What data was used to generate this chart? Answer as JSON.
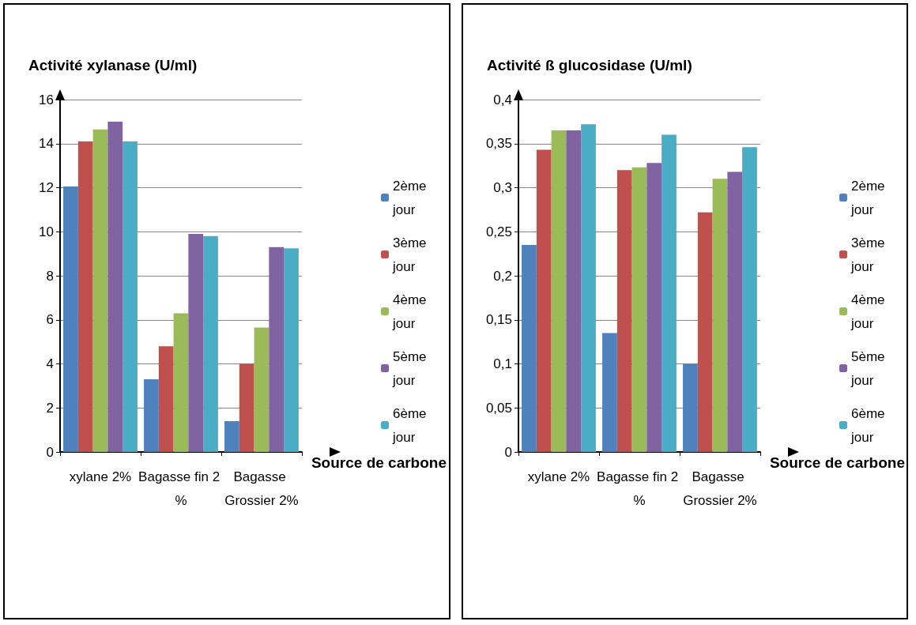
{
  "chart_data": [
    {
      "type": "bar",
      "ylabel": "Activité xylanase (U/ml)",
      "xlabel": "Source de carbone",
      "categories": [
        "xylane 2%",
        "Bagasse fin 2 %",
        "Bagasse Grossier 2%"
      ],
      "series": [
        {
          "name": "2ème jour",
          "color": "#4f81bd",
          "values": [
            12.05,
            3.3,
            1.4
          ]
        },
        {
          "name": "3ème jour",
          "color": "#c0504d",
          "values": [
            14.1,
            4.8,
            4.0
          ]
        },
        {
          "name": "4ème jour",
          "color": "#9bbb59",
          "values": [
            14.65,
            6.3,
            5.65
          ]
        },
        {
          "name": "5ème jour",
          "color": "#8064a2",
          "values": [
            15.0,
            9.9,
            9.3
          ]
        },
        {
          "name": "6ème jour",
          "color": "#4bacc6",
          "values": [
            14.1,
            9.8,
            9.25
          ]
        }
      ],
      "ylim": [
        0,
        16
      ],
      "yticks": [
        0,
        2,
        4,
        6,
        8,
        10,
        12,
        14,
        16
      ],
      "grid": "y",
      "legend": "right"
    },
    {
      "type": "bar",
      "ylabel": "Activité ß glucosidase (U/ml)",
      "xlabel": "Source de carbone",
      "categories": [
        "xylane 2%",
        "Bagasse fin 2 %",
        "Bagasse Grossier 2%"
      ],
      "series": [
        {
          "name": "2ème jour",
          "color": "#4f81bd",
          "values": [
            0.235,
            0.135,
            0.1
          ]
        },
        {
          "name": "3ème jour",
          "color": "#c0504d",
          "values": [
            0.343,
            0.32,
            0.272
          ]
        },
        {
          "name": "4ème jour",
          "color": "#9bbb59",
          "values": [
            0.365,
            0.323,
            0.31
          ]
        },
        {
          "name": "5ème jour",
          "color": "#8064a2",
          "values": [
            0.365,
            0.328,
            0.318
          ]
        },
        {
          "name": "6ème jour",
          "color": "#4bacc6",
          "values": [
            0.372,
            0.36,
            0.346
          ]
        }
      ],
      "ylim": [
        0,
        0.4
      ],
      "yticks": [
        0,
        {
          "value": 0.05,
          "label": "0,05"
        },
        {
          "value": 0.1,
          "label": "0,1"
        },
        {
          "value": 0.15,
          "label": "0,15"
        },
        {
          "value": 0.2,
          "label": "0,2"
        },
        {
          "value": 0.25,
          "label": "0,25"
        },
        {
          "value": 0.3,
          "label": "0,3"
        },
        {
          "value": 0.35,
          "label": "0,35"
        },
        {
          "value": 0.4,
          "label": "0,4"
        }
      ],
      "grid": "y",
      "legend": "right"
    }
  ]
}
